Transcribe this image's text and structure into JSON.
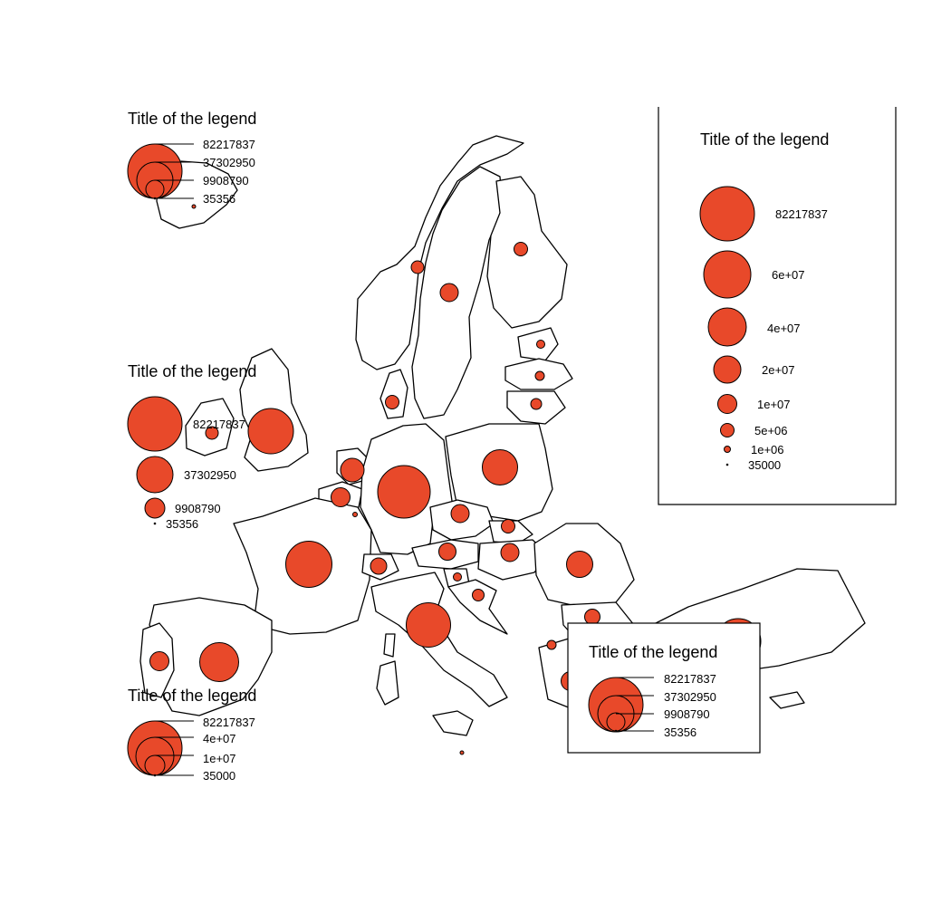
{
  "colors": {
    "bubble_fill": "#e8492a",
    "outline": "#000000",
    "background": "#ffffff"
  },
  "legends": {
    "top_left": {
      "style": "nested-circles",
      "title": "Title of the legend",
      "values": [
        "82217837",
        "37302950",
        "9908790",
        "35356"
      ]
    },
    "mid_left": {
      "style": "stacked-circles",
      "title": "Title of the legend",
      "values": [
        "82217837",
        "37302950",
        "9908790",
        "35356"
      ]
    },
    "bottom_left": {
      "style": "nested-circles",
      "title": "Title of the legend",
      "values": [
        "82217837",
        "4e+07",
        "1e+07",
        "35000"
      ]
    },
    "right_box": {
      "style": "stacked-circles-framed",
      "title": "Title of the legend",
      "values": [
        "82217837",
        "6e+07",
        "4e+07",
        "2e+07",
        "1e+07",
        "5e+06",
        "1e+06",
        "35000"
      ]
    },
    "bottom_right_box": {
      "style": "nested-circles-framed",
      "title": "Title of the legend",
      "values": [
        "82217837",
        "37302950",
        "9908790",
        "35356"
      ]
    }
  }
}
